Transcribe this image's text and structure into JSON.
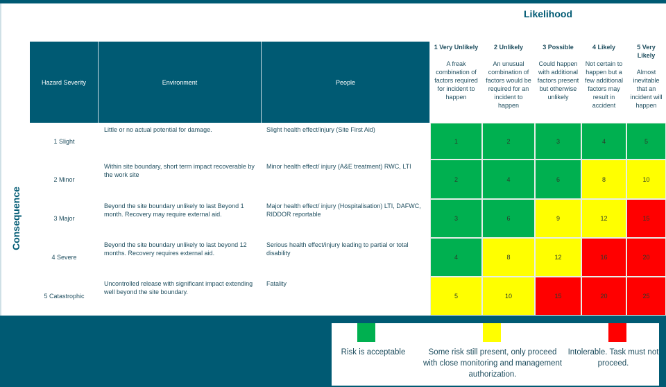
{
  "likelihood_title": "Likelihood",
  "consequence_title": "Consequence",
  "headers": {
    "severity": "Hazard Severity",
    "environment": "Environment",
    "people": "People"
  },
  "likelihood": [
    {
      "title": "1 Very Unlikely",
      "desc": "A freak combination of factors required for incident to happen"
    },
    {
      "title": "2 Unlikely",
      "desc": "An unusual combination of factors would be required for an incident to happen"
    },
    {
      "title": "3 Possible",
      "desc": "Could happen with additional factors present but otherwise unlikely"
    },
    {
      "title": "4 Likely",
      "desc": "Not certain to happen but a few additional factors may result in accident"
    },
    {
      "title": "5 Very Likely",
      "desc": "Almost inevitable that an incident will happen"
    }
  ],
  "rows": [
    {
      "severity": "1 Slight",
      "environment": "Little or no actual potential for damage.",
      "people": "Slight health effect/injury (Site First Aid)",
      "scores": [
        "1",
        "2",
        "3",
        "4",
        "5"
      ],
      "levels": [
        "g",
        "g",
        "g",
        "g",
        "g"
      ]
    },
    {
      "severity": "2 Minor",
      "environment": "Within site boundary, short term impact recoverable by the work site",
      "people": "Minor health effect/ injury (A&E treatment) RWC, LTI",
      "scores": [
        "2",
        "4",
        "6",
        "8",
        "10"
      ],
      "levels": [
        "g",
        "g",
        "g",
        "y",
        "y"
      ]
    },
    {
      "severity": "3 Major",
      "environment": "Beyond the site boundary unlikely to last Beyond 1 month. Recovery may require external aid.",
      "people": "Major health effect/ injury (Hospitalisation) LTI, DAFWC, RIDDOR reportable",
      "scores": [
        "3",
        "6",
        "9",
        "12",
        "15"
      ],
      "levels": [
        "g",
        "g",
        "y",
        "y",
        "r"
      ]
    },
    {
      "severity": "4 Severe",
      "environment": "Beyond the site boundary unlikely to last beyond 12 months. Recovery requires external aid.",
      "people": "Serious health effect/injury leading to partial or total disability",
      "scores": [
        "4",
        "8",
        "12",
        "16",
        "20"
      ],
      "levels": [
        "g",
        "y",
        "y",
        "r",
        "r"
      ]
    },
    {
      "severity": "5 Catastrophic",
      "environment": "Uncontrolled release with significant impact extending well beyond the site boundary.",
      "people": "Fatality",
      "scores": [
        "5",
        "10",
        "15",
        "20",
        "25"
      ],
      "levels": [
        "y",
        "y",
        "r",
        "r",
        "r"
      ]
    }
  ],
  "colors": {
    "g": "#00b050",
    "y": "#ffff00",
    "r": "#ff0000",
    "brand": "#005a73"
  },
  "legend": [
    {
      "level": "g",
      "text": "Risk is acceptable"
    },
    {
      "level": "y",
      "text": "Some risk still present, only proceed with close monitoring and management authorization."
    },
    {
      "level": "r",
      "text": "Intolerable. Task must not proceed."
    }
  ]
}
